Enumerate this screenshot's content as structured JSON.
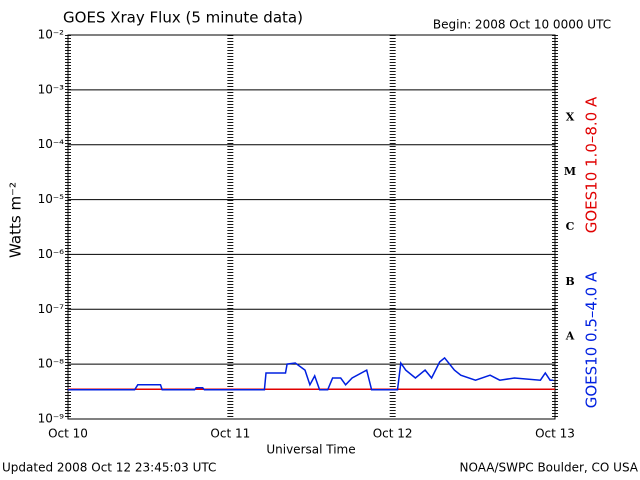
{
  "chart_data": {
    "type": "line",
    "title": "GOES Xray Flux (5 minute data)",
    "subtitle": "Begin:  2008 Oct 10 0000 UTC",
    "x_label": "Universal Time",
    "y_label": "Watts m⁻²",
    "footer_left": "Updated 2008 Oct 12 23:45:03 UTC",
    "footer_right": "NOAA/SWPC Boulder, CO USA",
    "log_y": true,
    "grid": true,
    "flare_classes": [
      "A",
      "B",
      "C",
      "M",
      "X"
    ],
    "xlim": [
      0,
      3
    ],
    "xticks": [
      {
        "value": 0,
        "label": "Oct 10"
      },
      {
        "value": 1,
        "label": "Oct 11"
      },
      {
        "value": 2,
        "label": "Oct 12"
      },
      {
        "value": 3,
        "label": "Oct 13"
      }
    ],
    "ylim": [
      1e-09,
      0.01
    ],
    "yticks": [
      {
        "value": 1e-09,
        "label": "10⁻⁹"
      },
      {
        "value": 1e-08,
        "label": "10⁻⁸"
      },
      {
        "value": 1e-07,
        "label": "10⁻⁷"
      },
      {
        "value": 1e-06,
        "label": "10⁻⁶"
      },
      {
        "value": 1e-05,
        "label": "10⁻⁵"
      },
      {
        "value": 0.0001,
        "label": "10⁻⁴"
      },
      {
        "value": 0.001,
        "label": "10⁻³"
      },
      {
        "value": 0.01,
        "label": "10⁻²"
      }
    ],
    "series": [
      {
        "name": "GOES10 1.0–8.0 A",
        "color": "#e00000",
        "x": [
          0,
          3
        ],
        "values": [
          3.5e-09,
          3.5e-09
        ]
      },
      {
        "name": "GOES10 0.5–4.0 A",
        "color": "#0020e0",
        "x": [
          0,
          0.41,
          0.43,
          0.57,
          0.58,
          0.78,
          0.79,
          0.83,
          0.84,
          1.21,
          1.22,
          1.34,
          1.35,
          1.4,
          1.46,
          1.49,
          1.52,
          1.55,
          1.6,
          1.63,
          1.68,
          1.71,
          1.75,
          1.84,
          1.87,
          2.03,
          2.05,
          2.08,
          2.14,
          2.2,
          2.24,
          2.29,
          2.32,
          2.38,
          2.42,
          2.51,
          2.6,
          2.66,
          2.75,
          2.91,
          2.94,
          2.97,
          2.99
        ],
        "values": [
          3.4e-09,
          3.4e-09,
          4.2e-09,
          4.2e-09,
          3.4e-09,
          3.4e-09,
          3.7e-09,
          3.7e-09,
          3.4e-09,
          3.4e-09,
          6.9e-09,
          6.9e-09,
          1e-08,
          1.05e-08,
          7.8e-09,
          4.2e-09,
          6.1e-09,
          3.4e-09,
          3.4e-09,
          5.6e-09,
          5.6e-09,
          4.2e-09,
          5.6e-09,
          7.8e-09,
          3.4e-09,
          3.4e-09,
          1.05e-08,
          7.8e-09,
          5.6e-09,
          7.8e-09,
          5.6e-09,
          1.1e-08,
          1.3e-08,
          7.8e-09,
          6.3e-09,
          5.1e-09,
          6.3e-09,
          5.1e-09,
          5.6e-09,
          5.1e-09,
          6.9e-09,
          5.1e-09,
          5.1e-09
        ]
      }
    ]
  }
}
